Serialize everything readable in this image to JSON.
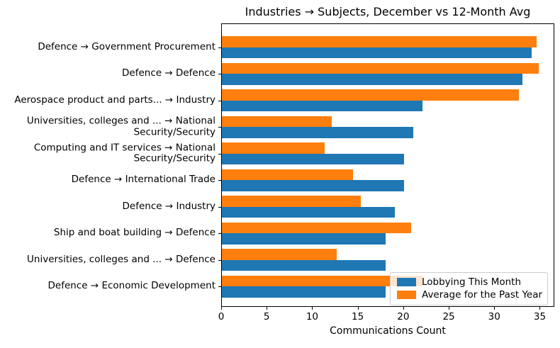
{
  "chart_data": {
    "type": "bar",
    "orientation": "horizontal",
    "title": "Industries → Subjects, December vs 12-Month Avg",
    "xlabel": "Communications Count",
    "ylabel": "",
    "grid": false,
    "legend_position": "lower right",
    "x_ticks": [
      0,
      5,
      10,
      15,
      20,
      25,
      30,
      35
    ],
    "xlim": [
      0,
      36.6
    ],
    "categories": [
      "Defence → Government Procurement",
      "Defence → Defence",
      "Aerospace product and parts... → Industry",
      "Universities, colleges and ... → National\nSecurity/Security",
      "Computing and IT services → National\nSecurity/Security",
      "Defence → International Trade",
      "Defence → Industry",
      "Ship and boat building → Defence",
      "Universities, colleges and ... → Defence",
      "Defence → Economic Development"
    ],
    "series": [
      {
        "name": "Lobbying This Month",
        "color": "#1f77b4",
        "values": [
          34,
          33,
          22,
          21,
          20,
          20,
          19,
          18,
          18,
          18
        ]
      },
      {
        "name": "Average for the Past Year",
        "color": "#ff7f0e",
        "values": [
          34.6,
          34.8,
          32.6,
          12.1,
          11.3,
          14.4,
          15.3,
          20.8,
          12.6,
          22.0
        ]
      }
    ],
    "colors": {
      "background": "#ffffff",
      "spine": "#000000",
      "text": "#000000",
      "legend_border": "#cccccc"
    }
  }
}
